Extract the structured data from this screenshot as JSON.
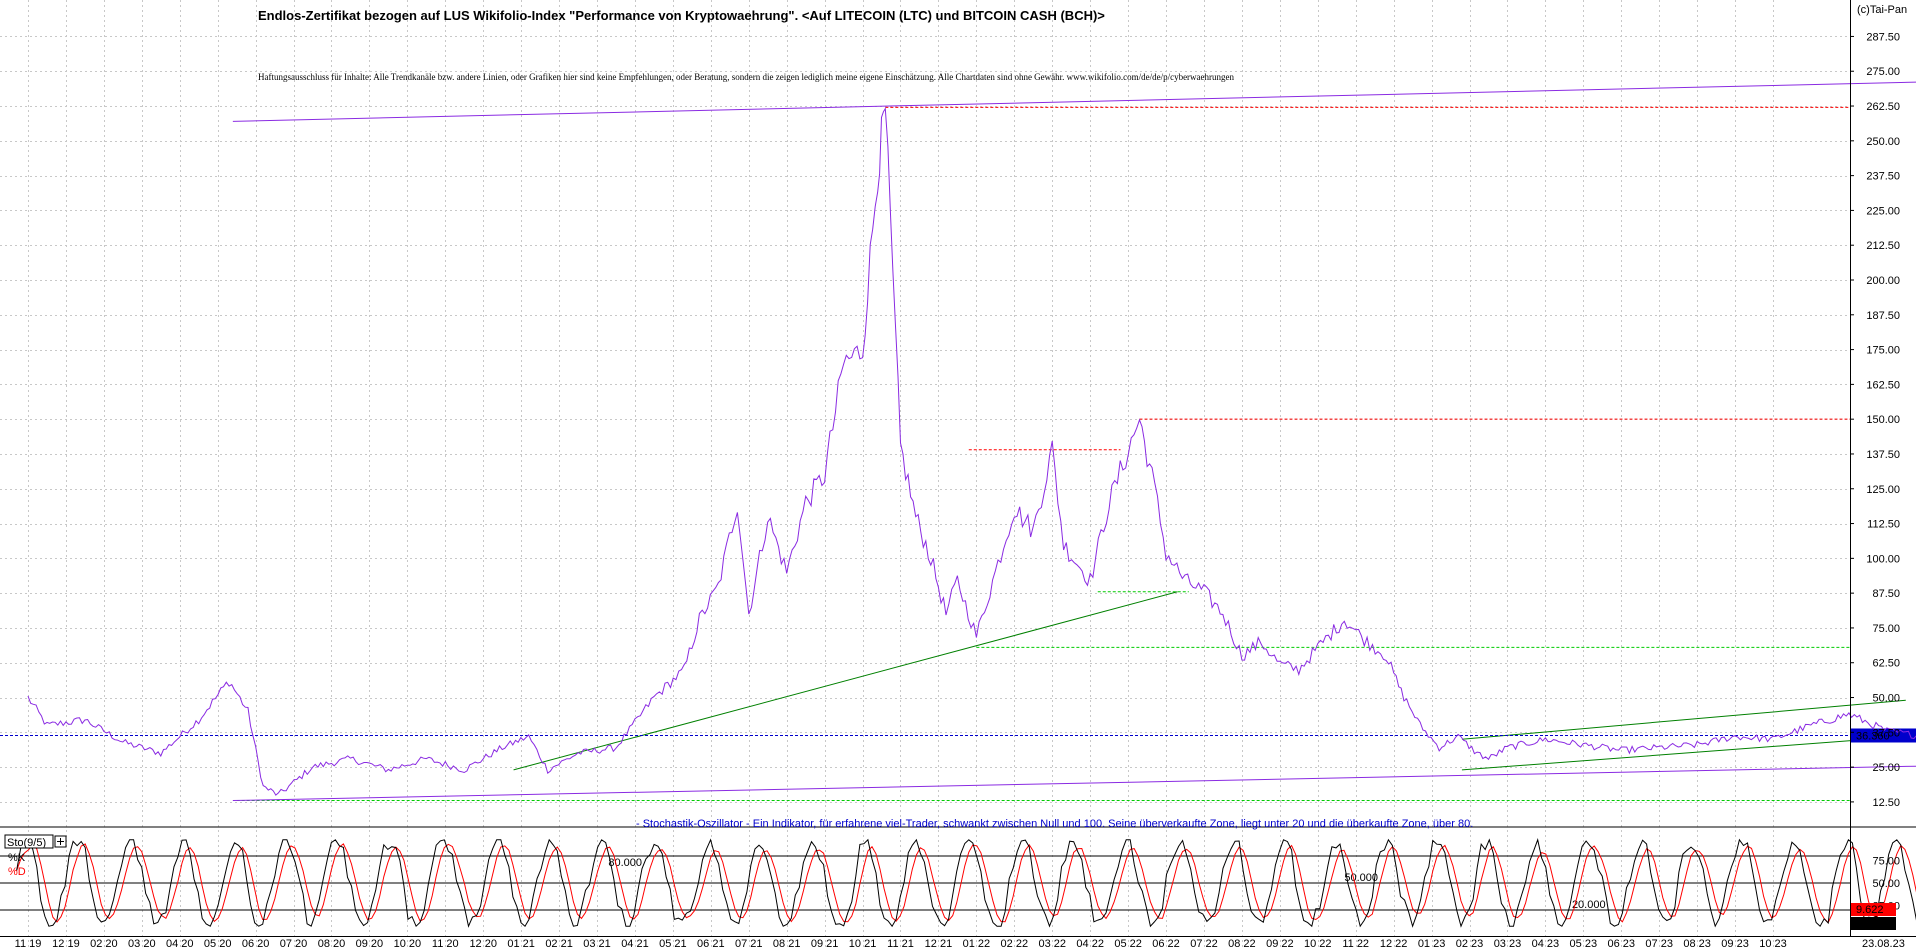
{
  "header": {
    "title": "Endlos-Zertifikat bezogen auf LUS Wikifolio-Index \"Performance von Kryptowaehrung\". <Auf LITECOIN (LTC) und BITCOIN CASH (BCH)>",
    "disclaimer": "Haftungsausschluss für Inhalte: Alle Trendkanäle bzw. andere Linien, oder Grafiken hier sind keine Empfehlungen, oder Beratung, sondern die zeigen lediglich meine eigene Einschätzung. Alle Chartdaten sind ohne Gewähr.  www.wikifolio.com/de/de/p/cyberwaehrungen",
    "copyright": "(c)Tai-Pan"
  },
  "colors": {
    "price": "#8a2be2",
    "resistance": "#ff0000",
    "support": "#00cc00",
    "trend": "#008000",
    "last_price": "#0000cc",
    "stoch_k": "#000000",
    "stoch_d": "#ff0000",
    "grid": "#c8c8c8"
  },
  "chart_data": [
    {
      "type": "line",
      "name": "price",
      "y_ticks": [
        "287.50",
        "275.00",
        "262.50",
        "250.00",
        "237.50",
        "225.00",
        "212.50",
        "200.00",
        "187.50",
        "175.00",
        "162.50",
        "150.00",
        "137.50",
        "125.00",
        "112.50",
        "100.00",
        "87.50",
        "75.00",
        "62.50",
        "50.00",
        "37.50",
        "25.00",
        "12.50"
      ],
      "ylim": [
        6,
        297
      ],
      "x_labels": [
        "11 19",
        "12 19",
        "02 20",
        "03 20",
        "04 20",
        "05 20",
        "06 20",
        "07 20",
        "08 20",
        "09 20",
        "10 20",
        "11 20",
        "12 20",
        "01 21",
        "02 21",
        "03 21",
        "04 21",
        "05 21",
        "06 21",
        "07 21",
        "08 21",
        "09 21",
        "10 21",
        "11 21",
        "12 21",
        "01 22",
        "02 22",
        "03 22",
        "04 22",
        "05 22",
        "06 22",
        "07 22",
        "08 22",
        "09 22",
        "10 22",
        "11 22",
        "12 22",
        "01 23",
        "02 23",
        "03 23",
        "04 23",
        "05 23",
        "06 23",
        "07 23",
        "08 23",
        "09 23",
        "10 23"
      ],
      "last_value_label": "36.360",
      "series_keypoints": [
        [
          0,
          50
        ],
        [
          0.5,
          40
        ],
        [
          1.5,
          42
        ],
        [
          2.5,
          34
        ],
        [
          3.5,
          30
        ],
        [
          4.5,
          42
        ],
        [
          5.3,
          56
        ],
        [
          5.8,
          45
        ],
        [
          6.2,
          18
        ],
        [
          6.6,
          15
        ],
        [
          7.5,
          25
        ],
        [
          8.5,
          28
        ],
        [
          9.5,
          24
        ],
        [
          10.5,
          28
        ],
        [
          11.5,
          24
        ],
        [
          12.5,
          32
        ],
        [
          13.2,
          36
        ],
        [
          13.7,
          24
        ],
        [
          14.5,
          30
        ],
        [
          15.5,
          32
        ],
        [
          16.5,
          50
        ],
        [
          17.3,
          60
        ],
        [
          17.7,
          78
        ],
        [
          18.2,
          90
        ],
        [
          18.7,
          120
        ],
        [
          19.0,
          80
        ],
        [
          19.5,
          115
        ],
        [
          20.0,
          95
        ],
        [
          20.5,
          120
        ],
        [
          21.0,
          130
        ],
        [
          21.5,
          170
        ],
        [
          22.0,
          175
        ],
        [
          22.4,
          240
        ],
        [
          22.6,
          260
        ],
        [
          23.0,
          140
        ],
        [
          23.4,
          115
        ],
        [
          23.8,
          100
        ],
        [
          24.2,
          80
        ],
        [
          24.5,
          92
        ],
        [
          25.0,
          72
        ],
        [
          25.5,
          95
        ],
        [
          26.0,
          118
        ],
        [
          26.5,
          110
        ],
        [
          27.0,
          139
        ],
        [
          27.3,
          105
        ],
        [
          28.0,
          92
        ],
        [
          28.5,
          120
        ],
        [
          29.3,
          150
        ],
        [
          29.7,
          125
        ],
        [
          30.0,
          102
        ],
        [
          30.5,
          92
        ],
        [
          31.0,
          88
        ],
        [
          31.5,
          80
        ],
        [
          32.0,
          65
        ],
        [
          32.5,
          70
        ],
        [
          33.0,
          62
        ],
        [
          33.5,
          60
        ],
        [
          34.0,
          68
        ],
        [
          34.7,
          78
        ],
        [
          35.3,
          70
        ],
        [
          35.8,
          65
        ],
        [
          36.2,
          52
        ],
        [
          36.7,
          40
        ],
        [
          37.2,
          32
        ],
        [
          37.7,
          36
        ],
        [
          38.2,
          30
        ],
        [
          38.5,
          28
        ],
        [
          39.0,
          32
        ],
        [
          40.0,
          35
        ],
        [
          41.0,
          33
        ],
        [
          42.0,
          31
        ],
        [
          43.0,
          32
        ],
        [
          44.0,
          33
        ],
        [
          45.0,
          36
        ],
        [
          46.0,
          35
        ],
        [
          47.0,
          40
        ],
        [
          48.0,
          44
        ],
        [
          49.0,
          38
        ],
        [
          50.0,
          36
        ],
        [
          51.0,
          40
        ],
        [
          51.7,
          32
        ],
        [
          52.0,
          36
        ],
        [
          52.6,
          55
        ],
        [
          53.0,
          52
        ],
        [
          53.5,
          50
        ],
        [
          54.0,
          46
        ],
        [
          54.5,
          45
        ],
        [
          54.9,
          36
        ]
      ],
      "annotations": {
        "resistance_levels": [
          262,
          150,
          139
        ],
        "support_levels": [
          88,
          68,
          13
        ]
      }
    },
    {
      "type": "line",
      "name": "Sto(9/5)",
      "series": [
        {
          "name": "%K"
        },
        {
          "name": "%D"
        }
      ],
      "y_ticks": [
        "75.00",
        "50.00",
        "25.00"
      ],
      "ylim": [
        0,
        100
      ],
      "levels": [
        80,
        50,
        20
      ],
      "level_labels": [
        "80.000",
        "50.000",
        "20.000"
      ],
      "last_values": [
        "9.622",
        "9.591"
      ],
      "date_label": "23.08.23",
      "note": "- Stochastik-Oszillator - Ein Indikator, für erfahrene viel-Trader, schwankt zwischen Null und 100. Seine überverkaufte Zone, liegt unter 20 und die überkaufte Zone, über 80."
    }
  ]
}
